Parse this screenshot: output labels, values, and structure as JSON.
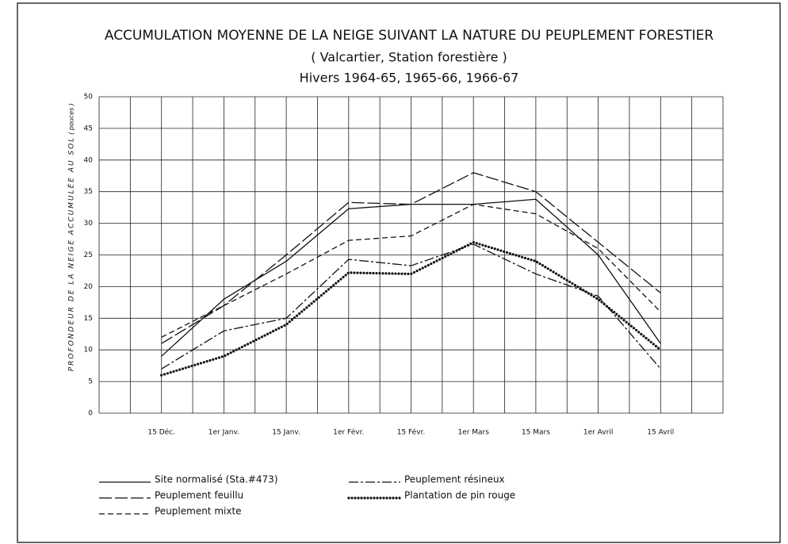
{
  "chart_data": {
    "type": "line",
    "title": "ACCUMULATION MOYENNE DE LA NEIGE SUIVANT LA NATURE DU PEUPLEMENT FORESTIER",
    "subtitle": "( Valcartier, Station forestière )",
    "subtitle2": "Hivers 1964-65, 1965-66, 1966-67",
    "y_label": "PROFONDEUR DE LA NEIGE ACCUMULÉE AU SOL",
    "y_unit": "( pouces )",
    "categories": [
      "15 Déc.",
      "1er Janv.",
      "15 Janv.",
      "1er Févr.",
      "15 Févr.",
      "1er Mars",
      "15 Mars",
      "1er Avril",
      "15 Avril"
    ],
    "ylim": [
      0,
      50
    ],
    "yticks": [
      0,
      5,
      10,
      15,
      20,
      25,
      30,
      35,
      40,
      45,
      50
    ],
    "grid": true,
    "series": [
      {
        "name": "Site normalisé (Sta.#473)",
        "color": "#111111",
        "line_style": "solid",
        "values": [
          9,
          18,
          24,
          32.3,
          33,
          33,
          33.8,
          25,
          11
        ]
      },
      {
        "name": "Peuplement feuillu",
        "color": "#111111",
        "line_style": "long-dash",
        "values": [
          11,
          17,
          25,
          33.3,
          33,
          38,
          35,
          27,
          19
        ]
      },
      {
        "name": "Peuplement mixte",
        "color": "#111111",
        "line_style": "dash",
        "values": [
          12,
          17,
          22,
          27.3,
          28,
          33,
          31.5,
          26,
          16
        ]
      },
      {
        "name": "Peuplement résineux",
        "color": "#111111",
        "line_style": "dash-dot",
        "values": [
          7,
          13,
          15,
          24.3,
          23.3,
          26.7,
          22,
          18.5,
          7
        ]
      },
      {
        "name": "Plantation de pin rouge",
        "color": "#111111",
        "line_style": "dotted",
        "values": [
          6,
          9,
          14,
          22.2,
          22,
          27,
          24,
          18,
          10
        ]
      }
    ]
  }
}
